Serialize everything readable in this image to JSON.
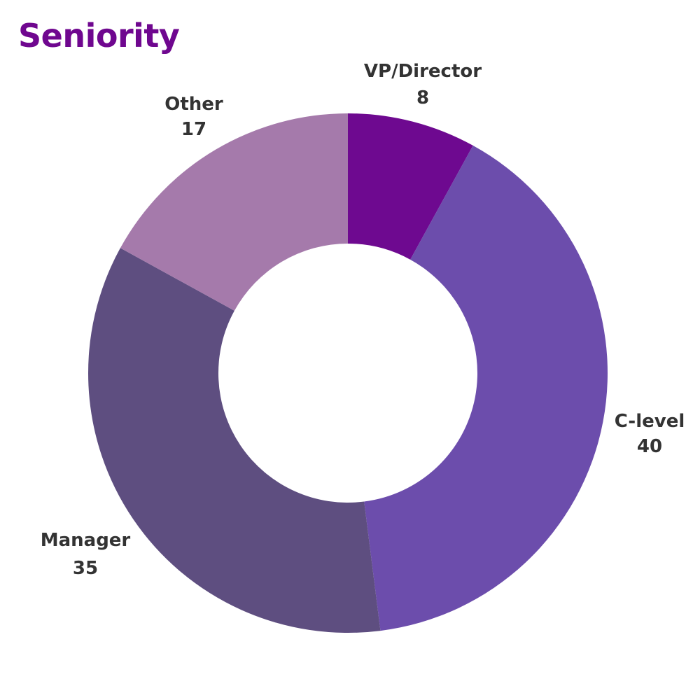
{
  "chart_data": {
    "type": "pie",
    "title": "Seniority",
    "donut": true,
    "slices": [
      {
        "label": "VP/Director",
        "value": 8,
        "color": "#6e0990"
      },
      {
        "label": "C-level",
        "value": 40,
        "color": "#6c4dac"
      },
      {
        "label": "Manager",
        "value": 35,
        "color": "#5e4e80"
      },
      {
        "label": "Other",
        "value": 17,
        "color": "#a57aab"
      }
    ],
    "legend": "none",
    "data_labels": "outside"
  }
}
